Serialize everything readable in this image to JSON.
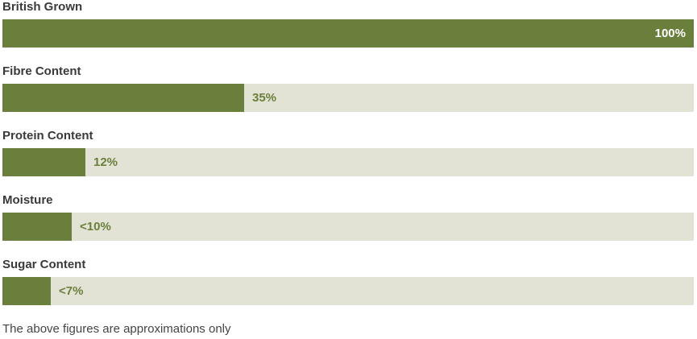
{
  "chart_data": {
    "type": "bar",
    "orientation": "horizontal",
    "categories": [
      "British Grown",
      "Fibre Content",
      "Protein Content",
      "Moisture",
      "Sugar Content"
    ],
    "values": [
      100,
      35,
      12,
      10,
      7
    ],
    "value_labels": [
      "100%",
      "35%",
      "12%",
      "<10%",
      "<7%"
    ],
    "xlim": [
      0,
      100
    ],
    "colors": {
      "bar": "#6a7f3b",
      "track": "#e2e2d5",
      "label_inside": "#ffffff",
      "label_outside": "#6a7f3b"
    },
    "grid": false
  },
  "footnote": "The above figures are approximations only"
}
